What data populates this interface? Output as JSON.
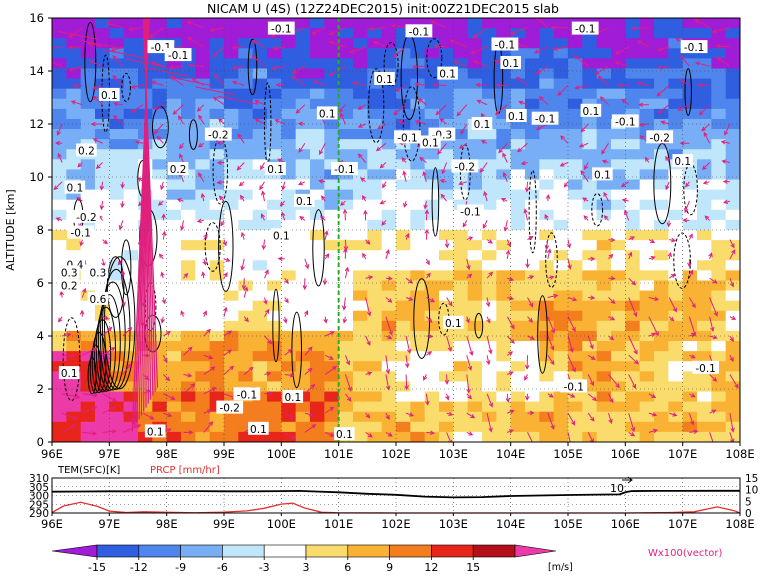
{
  "title": "NICAM  U  (4S)  (12Z24DEC2015)  init:00Z21DEC2015  slab",
  "colors": {
    "c_m15": "#a11cd6",
    "c_m12": "#2f5fe0",
    "c_m9": "#4f86ee",
    "c_m6": "#78aef6",
    "c_m3": "#bfe6fb",
    "c_0": "#ffffff",
    "c_3": "#f9dc6b",
    "c_6": "#f9b233",
    "c_9": "#f47d1d",
    "c_12": "#e8251b",
    "c_15": "#b5101a",
    "c_hi": "#ec3aa8",
    "wind_vector": "#e0207e",
    "temp_line": "#000000",
    "prcp_line": "#e23030",
    "green_marker": "#1fb31f"
  },
  "chart_data": [
    {
      "type": "heatmap",
      "title": "NICAM  U  (4S)  (12Z24DEC2015)  init:00Z21DEC2015  slab",
      "ylabel": "ALTITUDE [km]",
      "xlim": [
        96,
        108
      ],
      "ylim": [
        0,
        16
      ],
      "x_ticks": [
        "96E",
        "97E",
        "98E",
        "99E",
        "100E",
        "101E",
        "102E",
        "103E",
        "104E",
        "105E",
        "106E",
        "107E",
        "108E"
      ],
      "y_ticks": [
        "0",
        "2",
        "4",
        "6",
        "8",
        "10",
        "12",
        "14",
        "16"
      ],
      "grid": true,
      "vertical_marker_lon": 101,
      "contour_labels": [
        {
          "text": "-0.1",
          "x": 97.9,
          "y": 14.9
        },
        {
          "text": "-0.1",
          "x": 98.2,
          "y": 14.6
        },
        {
          "text": "-0.1",
          "x": 100.0,
          "y": 15.6
        },
        {
          "text": "-0.1",
          "x": 102.4,
          "y": 15.5
        },
        {
          "text": "-0.1",
          "x": 103.9,
          "y": 15.0
        },
        {
          "text": "-0.1",
          "x": 105.3,
          "y": 15.6
        },
        {
          "text": "-0.1",
          "x": 107.2,
          "y": 14.9
        },
        {
          "text": "0.1",
          "x": 97.0,
          "y": 13.1
        },
        {
          "text": "0.1",
          "x": 101.8,
          "y": 13.7
        },
        {
          "text": "0.1",
          "x": 102.9,
          "y": 13.9
        },
        {
          "text": "0.1",
          "x": 104.0,
          "y": 14.3
        },
        {
          "text": "0.1",
          "x": 105.4,
          "y": 12.5
        },
        {
          "text": "-0.1",
          "x": 104.6,
          "y": 12.2
        },
        {
          "text": "0.1",
          "x": 100.8,
          "y": 12.4
        },
        {
          "text": "-0.2",
          "x": 98.9,
          "y": 11.6
        },
        {
          "text": "0.2",
          "x": 96.6,
          "y": 11.0
        },
        {
          "text": "0.2",
          "x": 98.2,
          "y": 10.3
        },
        {
          "text": "-0.1",
          "x": 102.2,
          "y": 11.5
        },
        {
          "text": "-0.3",
          "x": 102.8,
          "y": 11.6
        },
        {
          "text": "0.1",
          "x": 102.6,
          "y": 11.3
        },
        {
          "text": "0.1",
          "x": 103.5,
          "y": 12.0
        },
        {
          "text": "0.1",
          "x": 104.1,
          "y": 12.3
        },
        {
          "text": "-0.1",
          "x": 106.0,
          "y": 12.1
        },
        {
          "text": "-0.2",
          "x": 106.6,
          "y": 11.5
        },
        {
          "text": "-0.1",
          "x": 101.1,
          "y": 10.3
        },
        {
          "text": "-0.2",
          "x": 103.2,
          "y": 10.4
        },
        {
          "text": "0.1",
          "x": 99.9,
          "y": 10.3
        },
        {
          "text": "0.1",
          "x": 105.6,
          "y": 10.1
        },
        {
          "text": "0.1",
          "x": 107.0,
          "y": 10.6
        },
        {
          "text": "0.1",
          "x": 96.4,
          "y": 9.6
        },
        {
          "text": "-0.2",
          "x": 96.6,
          "y": 8.5
        },
        {
          "text": "-0.1",
          "x": 96.5,
          "y": 7.9
        },
        {
          "text": "0.1",
          "x": 100.4,
          "y": 9.1
        },
        {
          "text": "-0.1",
          "x": 103.3,
          "y": 8.7
        },
        {
          "text": "0.1",
          "x": 100.0,
          "y": 7.8
        },
        {
          "text": "0.4",
          "x": 96.4,
          "y": 6.7
        },
        {
          "text": "0.3",
          "x": 96.3,
          "y": 6.4
        },
        {
          "text": "0.3",
          "x": 96.8,
          "y": 6.4
        },
        {
          "text": "0.2",
          "x": 96.3,
          "y": 5.9
        },
        {
          "text": "0.6",
          "x": 96.8,
          "y": 5.4
        },
        {
          "text": "0.1",
          "x": 103.0,
          "y": 4.5
        },
        {
          "text": "0.1",
          "x": 96.3,
          "y": 2.6
        },
        {
          "text": "-0.1",
          "x": 107.4,
          "y": 2.8
        },
        {
          "text": "-0.1",
          "x": 105.1,
          "y": 2.1
        },
        {
          "text": "-0.1",
          "x": 99.4,
          "y": 1.8
        },
        {
          "text": "0.1",
          "x": 100.2,
          "y": 1.7
        },
        {
          "text": "-0.2",
          "x": 99.1,
          "y": 1.3
        },
        {
          "text": "0.1",
          "x": 99.6,
          "y": 0.5
        },
        {
          "text": "0.1",
          "x": 101.1,
          "y": 0.3
        },
        {
          "text": "0.1",
          "x": 97.8,
          "y": 0.4
        }
      ]
    },
    {
      "type": "line",
      "left_axis_label": "TEM(SFC)[K]",
      "right_axis_label": "PRCP [mm/hr]",
      "xlim": [
        96,
        108
      ],
      "left_ylim": [
        290,
        310
      ],
      "left_ticks": [
        "290",
        "295",
        "300",
        "305",
        "310"
      ],
      "right_ylim": [
        0,
        15
      ],
      "right_ticks": [
        "0",
        "5",
        "10",
        "15"
      ],
      "annotation": "10",
      "series": [
        {
          "name": "TEM(SFC)[K]",
          "axis": "left",
          "x": [
            96,
            96.5,
            97,
            97.5,
            98,
            98.5,
            99,
            99.5,
            100,
            100.3,
            100.6,
            101,
            101.5,
            102,
            102.5,
            103,
            103.5,
            104,
            104.5,
            105,
            105.5,
            105.9,
            106.0,
            106.1,
            106.5,
            107,
            107.5,
            108
          ],
          "y": [
            302.2,
            302.3,
            302.4,
            302.4,
            302.5,
            302.5,
            302.4,
            302.4,
            302.5,
            302.6,
            302.3,
            301.8,
            301.0,
            300.4,
            299.4,
            298.9,
            299.1,
            299.7,
            300.0,
            300.3,
            300.5,
            300.6,
            301.8,
            302.5,
            302.6,
            302.6,
            302.7,
            302.7
          ]
        },
        {
          "name": "PRCP [mm/hr]",
          "axis": "right",
          "x": [
            96,
            96.2,
            96.5,
            96.8,
            97.0,
            97.3,
            97.6,
            98,
            98.5,
            99,
            99.4,
            99.7,
            100,
            100.2,
            100.4,
            100.7,
            101,
            102,
            103,
            104,
            105,
            106,
            106.8,
            107.2,
            107.6,
            107.9,
            108
          ],
          "y": [
            0.2,
            3.0,
            4.6,
            2.8,
            0.8,
            0.2,
            0.5,
            0.3,
            0.1,
            0.4,
            0.9,
            2.0,
            3.8,
            4.2,
            2.2,
            0.3,
            0.1,
            0.0,
            0.0,
            0.0,
            0.0,
            0.0,
            0.2,
            0.5,
            2.6,
            1.0,
            0.0
          ]
        }
      ]
    }
  ],
  "colorbar": {
    "ticks": [
      "-15",
      "-12",
      "-9",
      "-6",
      "-3",
      "3",
      "6",
      "9",
      "12",
      "15"
    ],
    "unit": "[m/s]",
    "vector_label": "Wx100(vector)"
  }
}
